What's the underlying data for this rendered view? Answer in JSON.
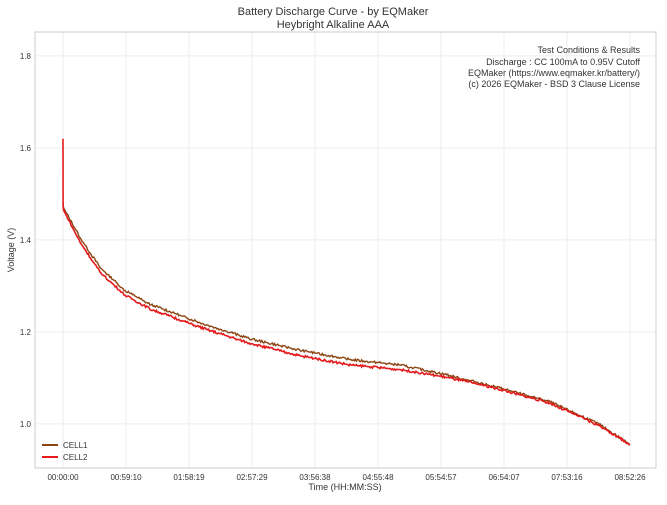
{
  "chart_data": {
    "type": "line",
    "title": "Battery Discharge Curve - by EQMaker",
    "subtitle": "Heybright Alkaline AAA",
    "xlabel": "Time (HH:MM:SS)",
    "ylabel": "Voltage (V)",
    "xlim_seconds": [
      -1578,
      33410
    ],
    "ylim": [
      0.904,
      1.852
    ],
    "grid": true,
    "x_ticks": [
      {
        "value": 0,
        "label": "00:00:00"
      },
      {
        "value": 3550,
        "label": "00:59:10"
      },
      {
        "value": 7099,
        "label": "01:58:19"
      },
      {
        "value": 10649,
        "label": "02:57:29"
      },
      {
        "value": 14198,
        "label": "03:56:38"
      },
      {
        "value": 17748,
        "label": "04:55:48"
      },
      {
        "value": 21297,
        "label": "05:54:57"
      },
      {
        "value": 24847,
        "label": "06:54:07"
      },
      {
        "value": 28396,
        "label": "07:53:16"
      },
      {
        "value": 31946,
        "label": "08:52:26"
      }
    ],
    "y_ticks": [
      {
        "value": 1.0,
        "label": "1.0"
      },
      {
        "value": 1.2,
        "label": "1.2"
      },
      {
        "value": 1.4,
        "label": "1.4"
      },
      {
        "value": 1.6,
        "label": "1.6"
      },
      {
        "value": 1.8,
        "label": "1.8"
      }
    ],
    "legend_position": "bottom-left",
    "annotation": [
      "Test Conditions & Results",
      "Discharge : CC 100mA to 0.95V Cutoff",
      "EQMaker (https://www.eqmaker.kr/battery/)",
      "(c) 2026 EQMaker - BSD 3 Clause License"
    ],
    "annotation_position": "top-right",
    "series": [
      {
        "name": "CELL1",
        "color": "#8B4513",
        "x": [
          0,
          30,
          958,
          2085,
          3493,
          4900,
          7720,
          10540,
          13350,
          16170,
          18990,
          21800,
          24620,
          27440,
          30260,
          31946
        ],
        "y": [
          1.48,
          1.47,
          1.405,
          1.34,
          1.29,
          1.26,
          1.22,
          1.185,
          1.16,
          1.14,
          1.128,
          1.105,
          1.078,
          1.048,
          0.998,
          0.955
        ]
      },
      {
        "name": "CELL2",
        "color": "#E41A1C",
        "x": [
          0,
          5,
          30,
          958,
          2085,
          3493,
          4900,
          7720,
          10540,
          13350,
          16170,
          18990,
          21800,
          24620,
          27440,
          30260,
          31946
        ],
        "y": [
          1.62,
          1.475,
          1.465,
          1.395,
          1.33,
          1.28,
          1.25,
          1.21,
          1.175,
          1.148,
          1.128,
          1.118,
          1.1,
          1.075,
          1.045,
          0.995,
          0.955
        ]
      }
    ]
  }
}
